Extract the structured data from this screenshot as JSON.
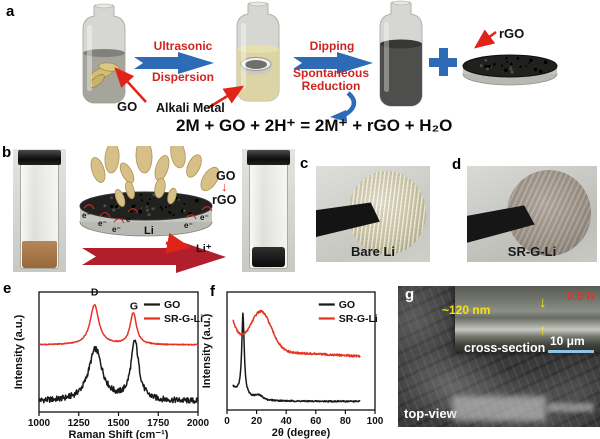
{
  "figure": {
    "panel_a": {
      "label": "a",
      "bottle1_label": "GO",
      "alkali_label": "Alkali Metal",
      "step1_line1": "Ultrasonic",
      "step1_line2": "Dispersion",
      "step2_line1": "Dipping",
      "step2_line2": "Spontaneous",
      "step2_line3": "Reduction",
      "rgo_label": "rGO",
      "equation": "2M + GO + 2H⁺ = 2M⁺ + rGO + H₂O"
    },
    "panel_b": {
      "label": "b",
      "go_label": "GO",
      "down_arrow": "↓",
      "rgo_label": "rGO",
      "li_label": "Li",
      "li_ion_label": "Li⁺",
      "electron_label": "e⁻"
    },
    "panel_c": {
      "label": "c",
      "caption": "Bare Li"
    },
    "panel_d": {
      "label": "d",
      "caption": "SR-G-Li"
    },
    "panel_e": {
      "label": "e"
    },
    "panel_f": {
      "label": "f"
    },
    "panel_g": {
      "label": "g",
      "time_label": "0.5 h",
      "thickness_label": "~120 nm",
      "arrow_down": "↓",
      "arrow_up": "↑",
      "cross_section_label": "cross-section",
      "scale_bar_label": "10 μm",
      "top_view_label": "top-view"
    },
    "colors": {
      "accent_red": "#cf2420",
      "arrow_blue": "#2d6bb7",
      "big_arrow_red": "#b01f2b",
      "curve_red": "#e63323",
      "curve_black": "#1a1a1a",
      "sem_yellow": "#f5e40a",
      "sem_time_red": "#d8372a",
      "scalebar_blue": "#8fc3e8"
    }
  },
  "chart_data": [
    {
      "id": "raman",
      "type": "line",
      "title": "",
      "xlabel": "Raman Shift (cm⁻¹)",
      "ylabel": "Intensity (a.u.)",
      "xlim": [
        1000,
        2000
      ],
      "xticks": [
        1000,
        1250,
        1500,
        1750,
        2000
      ],
      "grid": false,
      "legend_position": "top-right",
      "legend_x": 0.66,
      "annotations": [
        {
          "text": "D",
          "x": 1350,
          "v": 0.99
        },
        {
          "text": "G",
          "x": 1597,
          "v": 0.87
        }
      ],
      "series": [
        {
          "name": "GO",
          "color": "#1a1a1a",
          "noise": 0.05,
          "xrange": [
            1000,
            2000
          ],
          "components": [
            {
              "type": "const",
              "v": 0.09
            },
            {
              "type": "lorentz",
              "c": 1355,
              "h": 0.44,
              "w": 52
            },
            {
              "type": "lorentz",
              "c": 1603,
              "h": 0.5,
              "w": 30
            }
          ]
        },
        {
          "name": "SR-G-Li",
          "color": "#e63323",
          "noise": 0.008,
          "xrange": [
            1000,
            2000
          ],
          "components": [
            {
              "type": "const",
              "v": 0.57
            },
            {
              "type": "lorentz",
              "c": 1349,
              "h": 0.34,
              "w": 33
            },
            {
              "type": "lorentz",
              "c": 1593,
              "h": 0.27,
              "w": 24
            }
          ]
        }
      ]
    },
    {
      "id": "xrd",
      "type": "line",
      "title": "",
      "xlabel": "2θ (degree)",
      "ylabel": "Intensity (a.u.)",
      "xlim": [
        0,
        100
      ],
      "xticks": [
        0,
        20,
        40,
        60,
        80,
        100
      ],
      "grid": false,
      "legend_position": "top-right",
      "legend_x": 0.62,
      "annotations": [],
      "series": [
        {
          "name": "GO",
          "color": "#1a1a1a",
          "noise": 0.012,
          "xrange": [
            4,
            90
          ],
          "components": [
            {
              "type": "const",
              "v": 0.075
            },
            {
              "type": "expdecay",
              "x0": 4,
              "h": 0.12,
              "tau": 10
            },
            {
              "type": "lorentz",
              "c": 10.8,
              "h": 0.7,
              "w": 1.0
            },
            {
              "type": "gauss",
              "c": 21.5,
              "h": 0.03,
              "w": 2.5
            }
          ]
        },
        {
          "name": "SR-G-Li",
          "color": "#e63323",
          "noise": 0.018,
          "xrange": [
            4,
            90
          ],
          "components": [
            {
              "type": "const",
              "v": 0.52
            },
            {
              "type": "linear",
              "m": -0.0006,
              "b": 0
            },
            {
              "type": "expdecay",
              "x0": 4,
              "h": 0.26,
              "tau": 5
            },
            {
              "type": "gauss",
              "c": 23,
              "h": 0.34,
              "w": 7
            }
          ]
        }
      ]
    }
  ]
}
